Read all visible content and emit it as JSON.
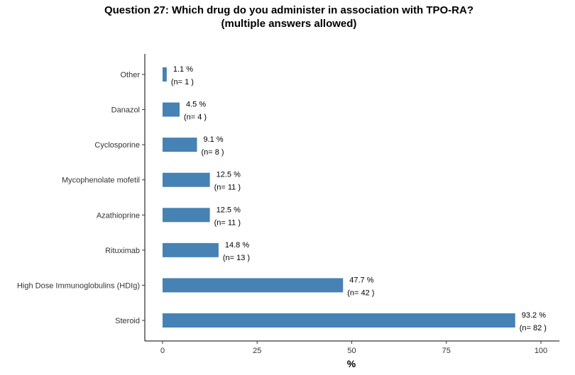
{
  "chart_data": {
    "type": "bar",
    "orientation": "horizontal",
    "title": "Question 27: Which drug do you administer in association with TPO-RA?",
    "subtitle": "(multiple answers allowed)",
    "xlabel": "%",
    "ylabel": "",
    "xlim": [
      0,
      100
    ],
    "xticks": [
      0,
      25,
      50,
      75,
      100
    ],
    "grid": false,
    "bar_color": "#4682B4",
    "categories": [
      "Other",
      "Danazol",
      "Cyclosporine",
      "Mycophenolate mofetil",
      "Azathioprine",
      "Rituximab",
      "High Dose Immunoglobulins (HDIg)",
      "Steroid"
    ],
    "values": [
      1.1,
      4.5,
      9.1,
      12.5,
      12.5,
      14.8,
      47.7,
      93.2
    ],
    "pct_labels": [
      "1.1 %",
      "4.5 %",
      "9.1 %",
      "12.5 %",
      "12.5 %",
      "14.8 %",
      "47.7 %",
      "93.2 %"
    ],
    "n_labels": [
      "(n= 1 )",
      "(n= 4 )",
      "(n= 8 )",
      "(n= 11 )",
      "(n= 11 )",
      "(n= 13 )",
      "(n= 42 )",
      "(n= 82 )"
    ]
  }
}
